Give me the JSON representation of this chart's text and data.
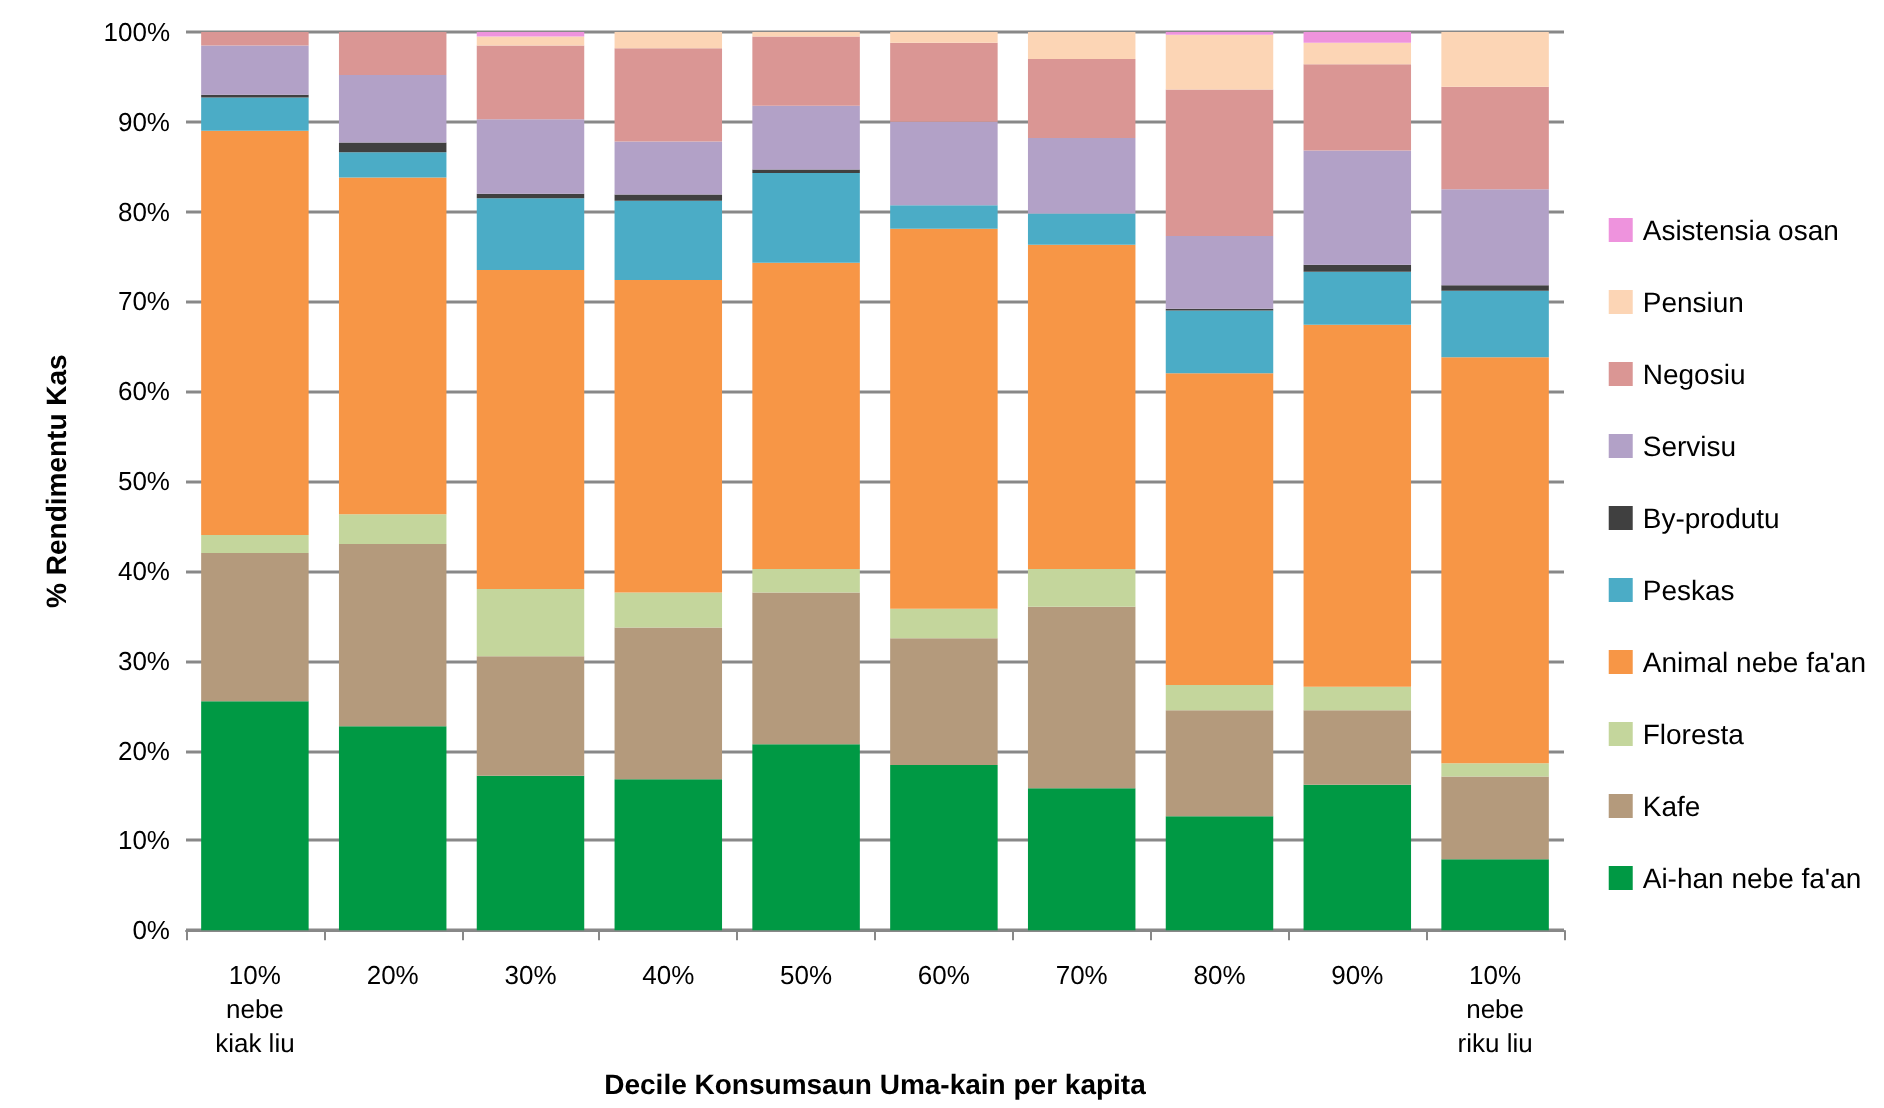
{
  "chart_data": {
    "type": "bar",
    "stacked": true,
    "xlabel": "Decile Konsumsaun Uma-kain per kapita",
    "ylabel": "% Rendimentu Kas",
    "categories": [
      "10%\nnebe\nkiak liu",
      "20%",
      "30%",
      "40%",
      "50%",
      "60%",
      "70%",
      "80%",
      "90%",
      "10%\nnebe\nriku liu"
    ],
    "ylim": [
      0,
      100
    ],
    "yticks": [
      {
        "value": 0,
        "label": "0%"
      },
      {
        "value": 10,
        "label": "10%"
      },
      {
        "value": 20,
        "label": "20%"
      },
      {
        "value": 30,
        "label": "30%"
      },
      {
        "value": 40,
        "label": "40%"
      },
      {
        "value": 50,
        "label": "50%"
      },
      {
        "value": 60,
        "label": "60%"
      },
      {
        "value": 70,
        "label": "70%"
      },
      {
        "value": 80,
        "label": "80%"
      },
      {
        "value": 90,
        "label": "90%"
      },
      {
        "value": 100,
        "label": "100%"
      }
    ],
    "grid": "y",
    "legend": "right",
    "series": [
      {
        "name": "Ai-han nebe fa'an",
        "color": "#009944",
        "values": [
          25.5,
          22.7,
          17.2,
          16.8,
          20.7,
          18.4,
          15.8,
          12.7,
          16.2,
          7.9
        ]
      },
      {
        "name": "Kafe",
        "color": "#b49a7c",
        "values": [
          16.5,
          20.3,
          13.3,
          16.9,
          16.9,
          14.1,
          20.2,
          11.8,
          8.3,
          9.2
        ]
      },
      {
        "name": "Floresta",
        "color": "#c4d69c",
        "values": [
          2,
          3.3,
          7.5,
          3.9,
          2.6,
          3.3,
          4.2,
          2.8,
          2.6,
          1.5
        ]
      },
      {
        "name": "Animal nebe fa'an",
        "color": "#f79646",
        "values": [
          45,
          37.5,
          35.5,
          34.8,
          34.1,
          42.3,
          36.1,
          34.7,
          40.3,
          45.2
        ]
      },
      {
        "name": "Peskas",
        "color": "#4bacc6",
        "values": [
          3.7,
          2.8,
          8,
          8.8,
          10,
          2.6,
          3.5,
          7,
          5.9,
          7.4
        ]
      },
      {
        "name": "By-produtu",
        "color": "#404040",
        "values": [
          0.3,
          1.1,
          0.5,
          0.7,
          0.4,
          0,
          0,
          0.2,
          0.8,
          0.6
        ]
      },
      {
        "name": "Servisu",
        "color": "#b2a1c7",
        "values": [
          5.5,
          7.5,
          8.3,
          5.9,
          7.1,
          9.3,
          8.4,
          8.1,
          12.7,
          10.7
        ]
      },
      {
        "name": "Negosiu",
        "color": "#da9694",
        "values": [
          1.5,
          4.8,
          8.2,
          10.4,
          7.7,
          8.8,
          8.8,
          16.3,
          9.6,
          11.4
        ]
      },
      {
        "name": "Pensiun",
        "color": "#fcd5b5",
        "values": [
          0,
          0,
          1,
          1.8,
          0.5,
          1.2,
          3,
          6.1,
          2.4,
          6.1
        ]
      },
      {
        "name": "Asistensia osan",
        "color": "#ee93dd",
        "values": [
          0,
          0,
          0.5,
          0,
          0,
          0,
          0,
          0.3,
          1.2,
          0
        ]
      }
    ]
  }
}
